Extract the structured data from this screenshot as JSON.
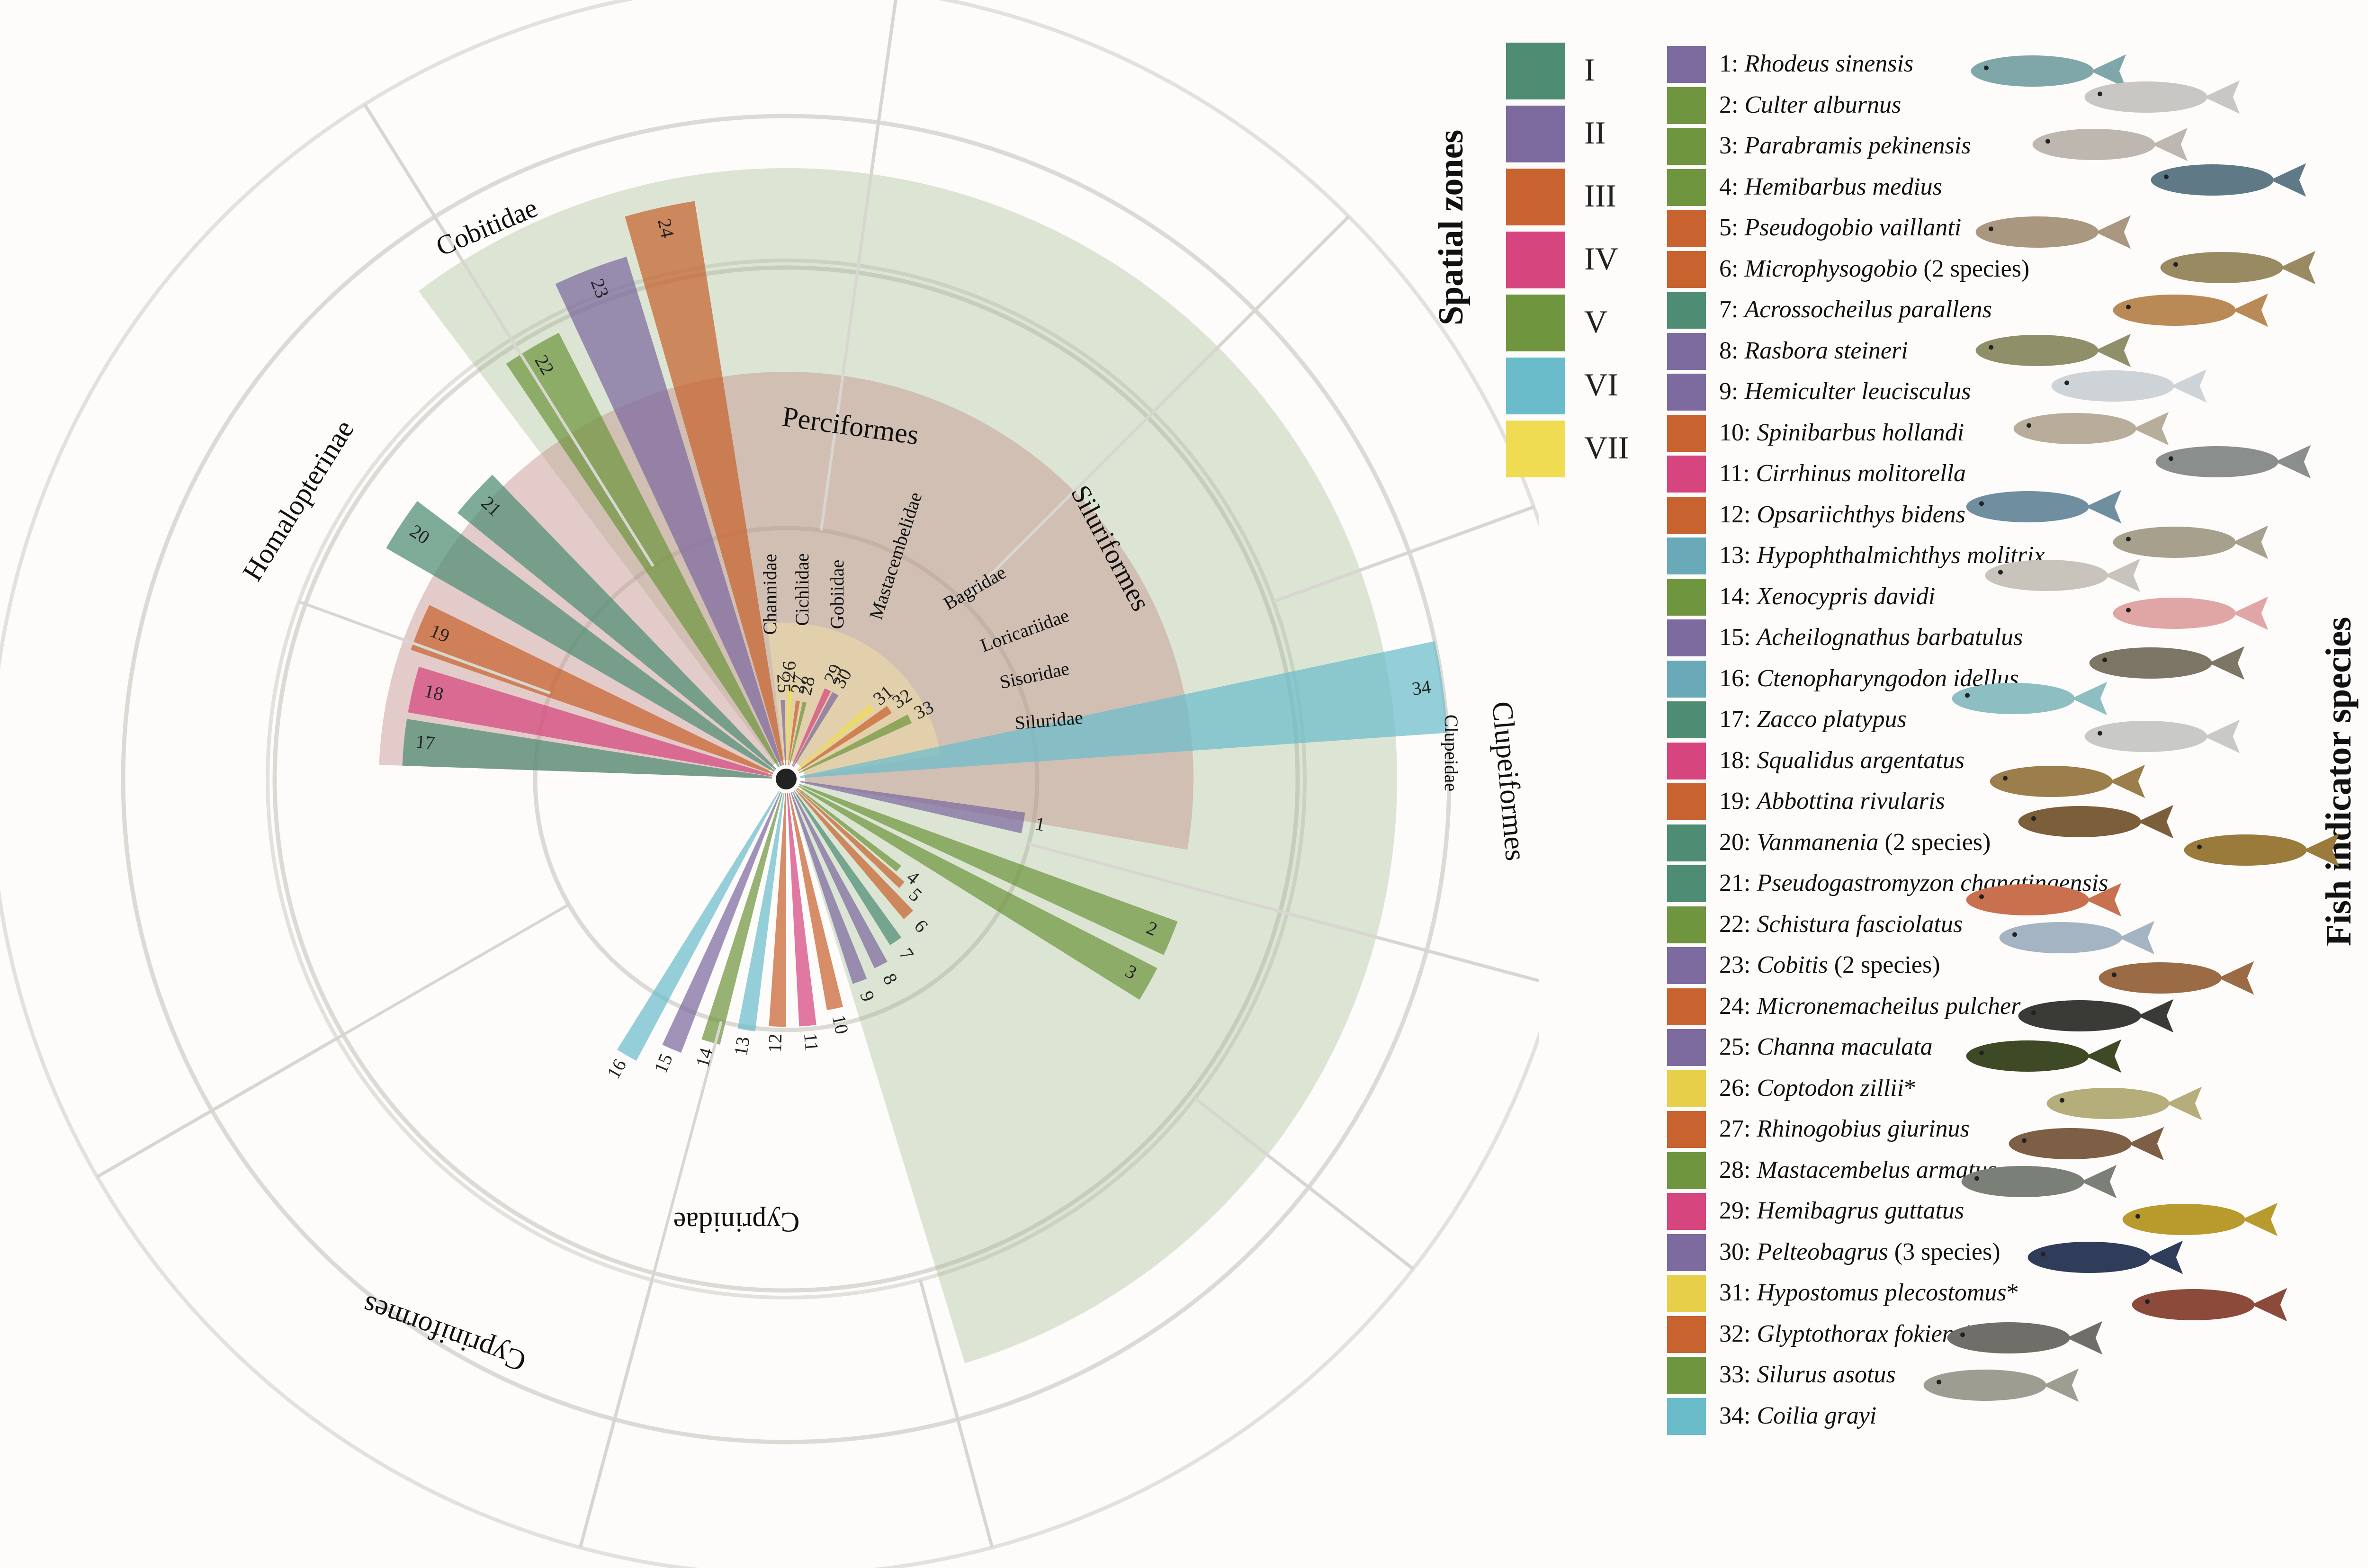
{
  "zone_colors": {
    "I": "#4e8c73",
    "II": "#7d6a9f",
    "III": "#c8622e",
    "IV": "#d6457e",
    "V": "#6f963f",
    "VI": "#6bbccb",
    "VII": "#f0dc52"
  },
  "legend": {
    "zones_title": "Spatial zones",
    "zones": [
      {
        "label": "I",
        "color": "#4e8c73"
      },
      {
        "label": "II",
        "color": "#7d6a9f"
      },
      {
        "label": "III",
        "color": "#c8622e"
      },
      {
        "label": "IV",
        "color": "#d6457e"
      },
      {
        "label": "V",
        "color": "#6f963f"
      },
      {
        "label": "VI",
        "color": "#6bbccb"
      },
      {
        "label": "VII",
        "color": "#f0dc52"
      }
    ],
    "species_title": "Fish indicator species",
    "species": [
      {
        "num": "1:",
        "name": "Rhodeus sinensis",
        "suffix": "",
        "color": "#7d6a9f"
      },
      {
        "num": "2:",
        "name": "Culter alburnus",
        "suffix": "",
        "color": "#6f963f"
      },
      {
        "num": "3:",
        "name": "Parabramis pekinensis",
        "suffix": "",
        "color": "#6f963f"
      },
      {
        "num": "4:",
        "name": "Hemibarbus medius",
        "suffix": "",
        "color": "#6f963f"
      },
      {
        "num": "5:",
        "name": "Pseudogobio vaillanti",
        "suffix": "",
        "color": "#c8622e"
      },
      {
        "num": "6:",
        "name": "Microphysogobio",
        "suffix": " (2 species)",
        "color": "#c8622e"
      },
      {
        "num": "7:",
        "name": "Acrossocheilus parallens",
        "suffix": "",
        "color": "#4e8c73"
      },
      {
        "num": "8:",
        "name": "Rasbora steineri",
        "suffix": "",
        "color": "#7d6a9f"
      },
      {
        "num": "9:",
        "name": "Hemiculter leucisculus",
        "suffix": "",
        "color": "#7d6a9f"
      },
      {
        "num": "10:",
        "name": "Spinibarbus hollandi",
        "suffix": "",
        "color": "#c8622e"
      },
      {
        "num": "11:",
        "name": "Cirrhinus molitorella",
        "suffix": "",
        "color": "#d6457e"
      },
      {
        "num": "12:",
        "name": "Opsariichthys bidens",
        "suffix": "",
        "color": "#c8622e"
      },
      {
        "num": "13:",
        "name": "Hypophthalmichthys molitrix",
        "suffix": "",
        "color": "#6aaab8"
      },
      {
        "num": "14:",
        "name": "Xenocypris davidi",
        "suffix": "",
        "color": "#6f963f"
      },
      {
        "num": "15:",
        "name": "Acheilognathus barbatulus",
        "suffix": "",
        "color": "#7d6a9f"
      },
      {
        "num": "16:",
        "name": "Ctenopharyngodon idellus",
        "suffix": "",
        "color": "#6aaab8"
      },
      {
        "num": "17:",
        "name": "Zacco platypus",
        "suffix": "",
        "color": "#4e8c73"
      },
      {
        "num": "18:",
        "name": "Squalidus argentatus",
        "suffix": "",
        "color": "#d6457e"
      },
      {
        "num": "19:",
        "name": "Abbottina rivularis",
        "suffix": "",
        "color": "#c8622e"
      },
      {
        "num": "20:",
        "name": "Vanmanenia",
        "suffix": " (2 species)",
        "color": "#4e8c73"
      },
      {
        "num": "21:",
        "name": "Pseudogastromyzon changtingensis",
        "suffix": "",
        "color": "#4e8c73"
      },
      {
        "num": "22:",
        "name": "Schistura fasciolatus",
        "suffix": "",
        "color": "#6f963f"
      },
      {
        "num": "23:",
        "name": "Cobitis",
        "suffix": " (2 species)",
        "color": "#7d6a9f"
      },
      {
        "num": "24:",
        "name": "Micronemacheilus pulcher",
        "suffix": "",
        "color": "#c8622e"
      },
      {
        "num": "25:",
        "name": "Channa maculata",
        "suffix": "",
        "color": "#7d6a9f"
      },
      {
        "num": "26:",
        "name": "Coptodon zillii",
        "suffix": "*",
        "color": "#e7cf4a"
      },
      {
        "num": "27:",
        "name": "Rhinogobius giurinus",
        "suffix": "",
        "color": "#c8622e"
      },
      {
        "num": "28:",
        "name": "Mastacembelus armatus",
        "suffix": "",
        "color": "#6f963f"
      },
      {
        "num": "29:",
        "name": "Hemibagrus guttatus",
        "suffix": "",
        "color": "#d6457e"
      },
      {
        "num": "30:",
        "name": "Pelteobagrus",
        "suffix": " (3 species)",
        "color": "#7d6a9f"
      },
      {
        "num": "31:",
        "name": "Hypostomus plecostomus",
        "suffix": "*",
        "color": "#e7cf4a"
      },
      {
        "num": "32:",
        "name": "Glyptothorax fokiensis",
        "suffix": "",
        "color": "#c8622e"
      },
      {
        "num": "33:",
        "name": "Silurus asotus",
        "suffix": "",
        "color": "#6f963f"
      },
      {
        "num": "34:",
        "name": "Coilia grayi",
        "suffix": "",
        "color": "#6bbccb"
      }
    ]
  },
  "orders": [
    {
      "name": "Perciformes"
    },
    {
      "name": "Siluriformes"
    },
    {
      "name": "Clupeiformes"
    },
    {
      "name": "Cypriniformes"
    }
  ],
  "families": [
    {
      "name": "Channidae"
    },
    {
      "name": "Cichlidae"
    },
    {
      "name": "Gobiidae"
    },
    {
      "name": "Mastacembelidae"
    },
    {
      "name": "Bagridae"
    },
    {
      "name": "Loricariidae"
    },
    {
      "name": "Sisoridae"
    },
    {
      "name": "Siluridae"
    },
    {
      "name": "Clupeidae"
    },
    {
      "name": "Cyprinidae"
    },
    {
      "name": "Homalopterinae"
    },
    {
      "name": "Cobitidae"
    }
  ],
  "species_bars": [
    {
      "id": "1",
      "value": 0.35,
      "zone": "II"
    },
    {
      "id": "2",
      "value": 0.62,
      "zone": "V"
    },
    {
      "id": "3",
      "value": 0.62,
      "zone": "V"
    },
    {
      "id": "4",
      "value": 0.2,
      "zone": "V"
    },
    {
      "id": "5",
      "value": 0.22,
      "zone": "III"
    },
    {
      "id": "6",
      "value": 0.26,
      "zone": "III"
    },
    {
      "id": "7",
      "value": 0.28,
      "zone": "I"
    },
    {
      "id": "8",
      "value": 0.3,
      "zone": "II"
    },
    {
      "id": "9",
      "value": 0.31,
      "zone": "II"
    },
    {
      "id": "10",
      "value": 0.34,
      "zone": "III"
    },
    {
      "id": "11",
      "value": 0.36,
      "zone": "IV"
    },
    {
      "id": "12",
      "value": 0.36,
      "zone": "III"
    },
    {
      "id": "13",
      "value": 0.37,
      "zone": "VI"
    },
    {
      "id": "14",
      "value": 0.4,
      "zone": "V"
    },
    {
      "id": "15",
      "value": 0.43,
      "zone": "II"
    },
    {
      "id": "16",
      "value": 0.47,
      "zone": "VI"
    },
    {
      "id": "17",
      "value": 0.57,
      "zone": "I"
    },
    {
      "id": "18",
      "value": 0.57,
      "zone": "IV"
    },
    {
      "id": "19",
      "value": 0.59,
      "zone": "III"
    },
    {
      "id": "20",
      "value": 0.69,
      "zone": "I"
    },
    {
      "id": "21",
      "value": 0.63,
      "zone": "I"
    },
    {
      "id": "22",
      "value": 0.75,
      "zone": "V"
    },
    {
      "id": "23",
      "value": 0.82,
      "zone": "II"
    },
    {
      "id": "24",
      "value": 0.88,
      "zone": "III"
    },
    {
      "id": "25",
      "value": 0.1,
      "zone": "II"
    },
    {
      "id": "26",
      "value": 0.12,
      "zone": "VII"
    },
    {
      "id": "27",
      "value": 0.1,
      "zone": "III"
    },
    {
      "id": "28",
      "value": 0.1,
      "zone": "V"
    },
    {
      "id": "29",
      "value": 0.13,
      "zone": "IV"
    },
    {
      "id": "30",
      "value": 0.13,
      "zone": "II"
    },
    {
      "id": "31",
      "value": 0.15,
      "zone": "VII"
    },
    {
      "id": "32",
      "value": 0.17,
      "zone": "III"
    },
    {
      "id": "33",
      "value": 0.19,
      "zone": "V"
    },
    {
      "id": "34",
      "value": 1.0,
      "zone": "VI"
    }
  ]
}
